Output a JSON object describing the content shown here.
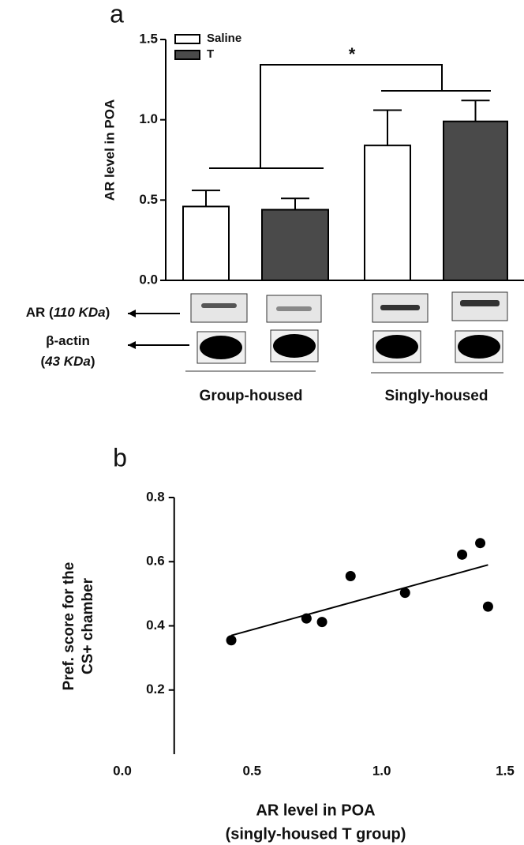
{
  "chart_data": [
    {
      "type": "bar",
      "title": "a",
      "y_label": "AR level in POA",
      "categories": [
        "Group-housed",
        "Singly-housed"
      ],
      "series": [
        {
          "name": "Saline",
          "color": "#ffffff",
          "values": [
            0.46,
            0.84
          ],
          "errors": [
            0.1,
            0.22
          ]
        },
        {
          "name": "T",
          "color": "#4a4a4a",
          "values": [
            0.44,
            0.99
          ],
          "errors": [
            0.07,
            0.13
          ]
        }
      ],
      "ylim": [
        0,
        1.5
      ],
      "yticks": [
        {
          "value": 0,
          "label": "0.0"
        },
        0.5,
        {
          "value": 1,
          "label": "1.0"
        },
        1.5
      ],
      "annotation": "*"
    },
    {
      "type": "scatter",
      "title": "b",
      "y_label": [
        "Pref. score for the",
        "CS+ chamber"
      ],
      "x_label": [
        "AR level in POA",
        "(singly-housed T group)"
      ],
      "x": [
        0.42,
        0.71,
        0.77,
        0.88,
        1.09,
        1.31,
        1.38,
        1.41
      ],
      "values": [
        0.355,
        0.423,
        0.412,
        0.555,
        0.503,
        0.622,
        0.658,
        0.46
      ],
      "color": "#000000",
      "fit": {
        "x": [
          0.42,
          1.41
        ],
        "y": [
          0.37,
          0.59
        ]
      },
      "xlim": [
        0,
        1.5
      ],
      "ylim": [
        0,
        0.8
      ],
      "xticks": [
        {
          "value": 0,
          "label": "0.0"
        },
        0.5,
        {
          "value": 1,
          "label": "1.0"
        },
        1.5
      ],
      "yticks": [
        0.2,
        0.4,
        0.6,
        0.8
      ]
    }
  ],
  "blot_labels": [
    {
      "lines": [
        [
          "AR (",
          "110 KDa",
          ")"
        ]
      ]
    },
    {
      "lines": [
        [
          "β-actin"
        ],
        [
          "(",
          "43 KDa",
          ")"
        ]
      ]
    }
  ]
}
